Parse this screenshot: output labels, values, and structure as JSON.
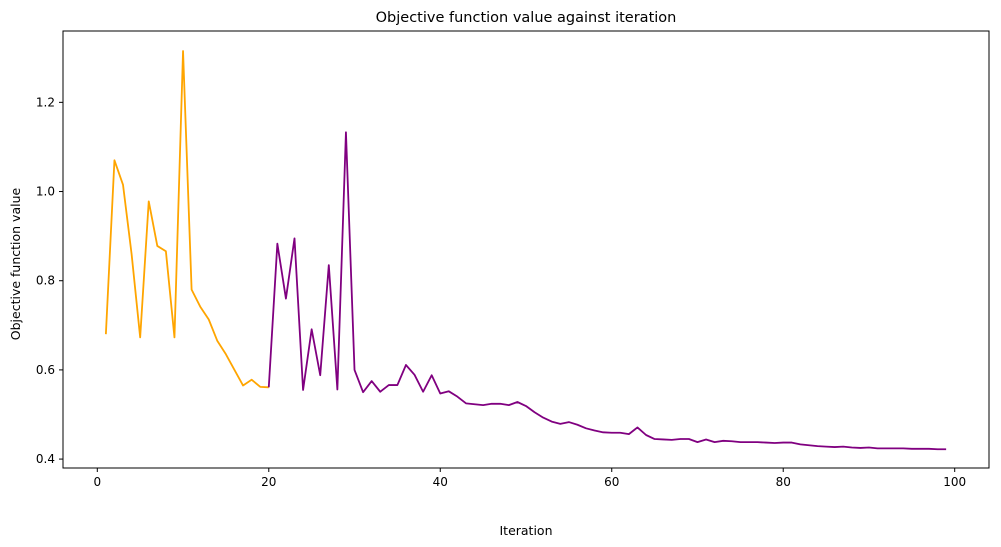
{
  "chart_data": {
    "type": "line",
    "title": "Objective function value against iteration",
    "xlabel": "Iteration",
    "ylabel": "Objective function value",
    "xlim": [
      -4,
      104
    ],
    "ylim": [
      0.38,
      1.36
    ],
    "xticks": [
      0,
      20,
      40,
      60,
      80,
      100
    ],
    "yticks": [
      0.4,
      0.6,
      0.8,
      1.0,
      1.2
    ],
    "xtick_labels": [
      "0",
      "20",
      "40",
      "60",
      "80",
      "100"
    ],
    "ytick_labels": [
      "0.4",
      "0.6",
      "0.8",
      "1.0",
      "1.2"
    ],
    "grid": false,
    "legend": "none",
    "series": [
      {
        "color": "#ffa500",
        "x": [
          1,
          2,
          3,
          4,
          5,
          6,
          7,
          8,
          9,
          10,
          11,
          12,
          13,
          14,
          15,
          16,
          17,
          18,
          19,
          20
        ],
        "y": [
          0.68,
          1.07,
          1.015,
          0.86,
          0.673,
          0.978,
          0.878,
          0.866,
          0.673,
          1.315,
          0.78,
          0.742,
          0.713,
          0.665,
          0.635,
          0.6,
          0.565,
          0.578,
          0.562,
          0.561
        ]
      },
      {
        "color": "#800080",
        "x": [
          20,
          21,
          22,
          23,
          24,
          25,
          26,
          27,
          28,
          29,
          30,
          31,
          32,
          33,
          34,
          35,
          36,
          37,
          38,
          39,
          40,
          41,
          42,
          43,
          44,
          45,
          46,
          47,
          48,
          49,
          50,
          51,
          52,
          53,
          54,
          55,
          56,
          57,
          58,
          59,
          60,
          61,
          62,
          63,
          64,
          65,
          66,
          67,
          68,
          69,
          70,
          71,
          72,
          73,
          74,
          75,
          76,
          77,
          78,
          79,
          80,
          81,
          82,
          83,
          84,
          85,
          86,
          87,
          88,
          89,
          90,
          91,
          92,
          93,
          94,
          95,
          96,
          97,
          98,
          99
        ],
        "y": [
          0.561,
          0.883,
          0.76,
          0.895,
          0.555,
          0.691,
          0.588,
          0.835,
          0.556,
          1.133,
          0.6,
          0.55,
          0.575,
          0.551,
          0.566,
          0.566,
          0.611,
          0.589,
          0.551,
          0.588,
          0.547,
          0.552,
          0.54,
          0.525,
          0.523,
          0.521,
          0.524,
          0.524,
          0.521,
          0.528,
          0.519,
          0.505,
          0.493,
          0.484,
          0.479,
          0.483,
          0.477,
          0.469,
          0.464,
          0.46,
          0.459,
          0.459,
          0.456,
          0.471,
          0.454,
          0.445,
          0.444,
          0.443,
          0.445,
          0.445,
          0.438,
          0.444,
          0.438,
          0.441,
          0.44,
          0.438,
          0.438,
          0.438,
          0.437,
          0.436,
          0.437,
          0.437,
          0.433,
          0.431,
          0.429,
          0.428,
          0.427,
          0.428,
          0.426,
          0.425,
          0.426,
          0.424,
          0.424,
          0.424,
          0.424,
          0.423,
          0.423,
          0.423,
          0.422,
          0.422
        ]
      }
    ]
  }
}
